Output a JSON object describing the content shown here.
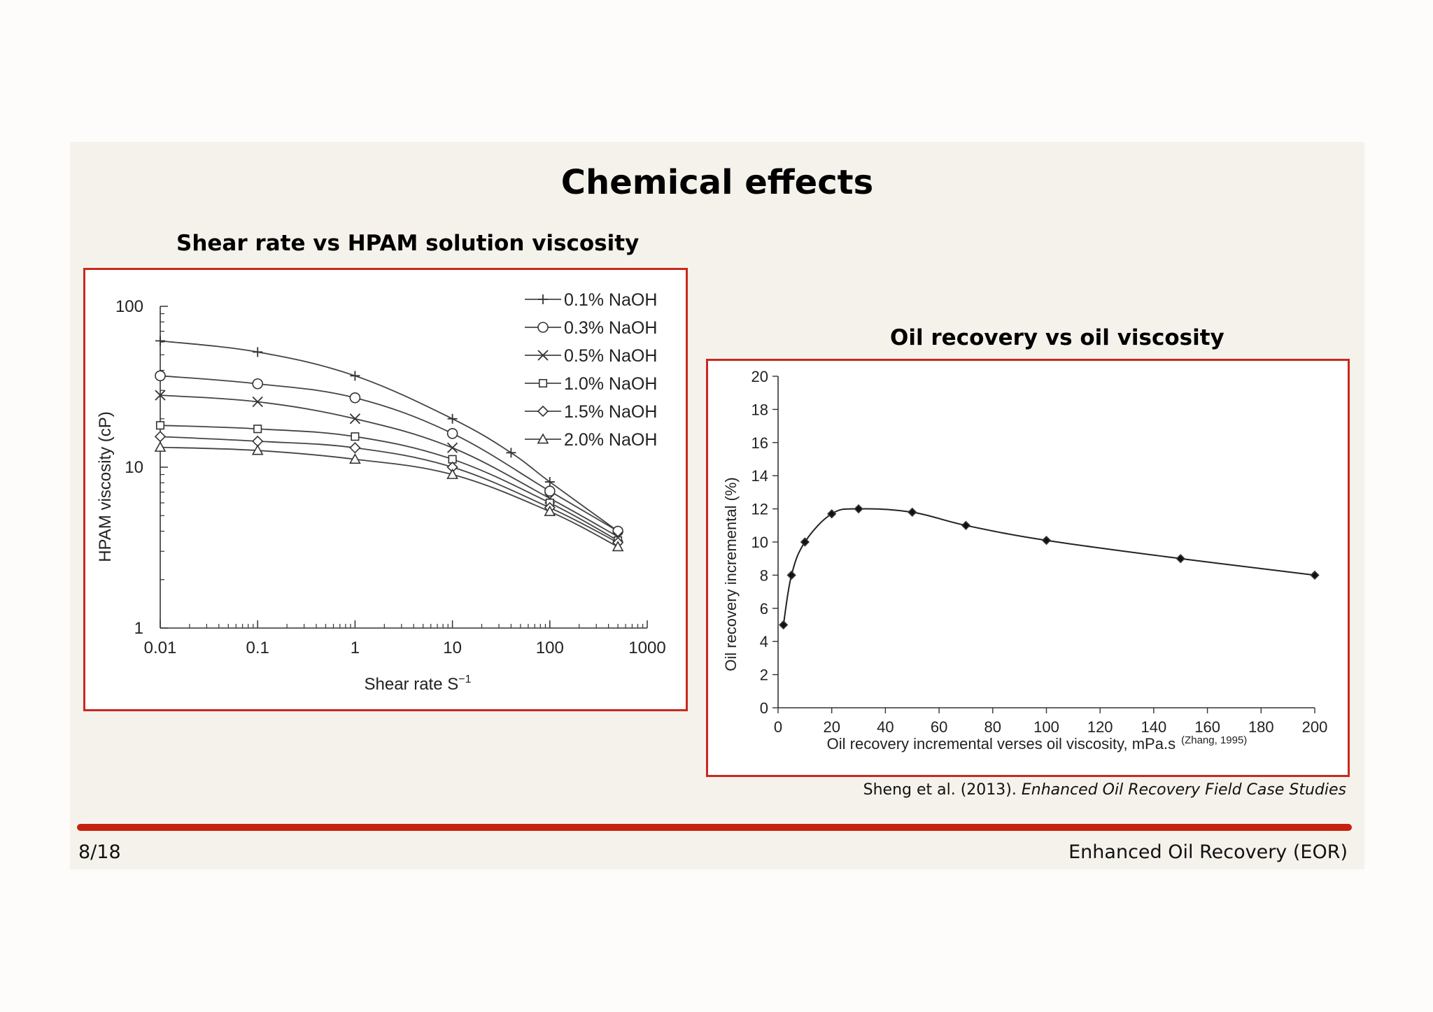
{
  "slide": {
    "title": "Chemical effects",
    "left_subtitle": "Shear rate vs HPAM solution viscosity",
    "right_subtitle": "Oil recovery vs oil viscosity",
    "reference_prefix": "Sheng et al. (2013). ",
    "reference_title": "Enhanced Oil Recovery Field Case Studies",
    "page_number": "8/18",
    "course_name": "Enhanced Oil Recovery (EOR)"
  },
  "chart_data": [
    {
      "type": "line",
      "xlabel": "Shear rate S",
      "xlabel_sup": "−1",
      "ylabel": "HPAM viscosity (cP)",
      "xscale": "log",
      "yscale": "log",
      "xlim": [
        0.01,
        1000
      ],
      "ylim": [
        1,
        100
      ],
      "x_ticks": [
        0.01,
        0.1,
        1,
        10,
        100,
        1000
      ],
      "x_tick_labels": [
        "0.01",
        "0.1",
        "1",
        "10",
        "100",
        "1000"
      ],
      "y_ticks": [
        1,
        10,
        100
      ],
      "y_tick_labels": [
        "1",
        "10",
        "100"
      ],
      "legend_position": "top-right",
      "series": [
        {
          "name": "0.1% NaOH",
          "marker": "plus",
          "x": [
            0.01,
            0.1,
            1,
            10,
            40,
            100,
            500
          ],
          "y": [
            61,
            52,
            37,
            20,
            12.3,
            8.1,
            4.0
          ]
        },
        {
          "name": "0.3% NaOH",
          "marker": "circle",
          "x": [
            0.01,
            0.1,
            1,
            10,
            100,
            500
          ],
          "y": [
            37,
            33,
            27,
            16.2,
            7.1,
            4.0
          ]
        },
        {
          "name": "0.5% NaOH",
          "marker": "x",
          "x": [
            0.01,
            0.1,
            1,
            10,
            100,
            500
          ],
          "y": [
            28,
            25.5,
            20,
            13.2,
            6.4,
            3.7
          ]
        },
        {
          "name": "1.0% NaOH",
          "marker": "square",
          "x": [
            0.01,
            0.1,
            1,
            10,
            100,
            500
          ],
          "y": [
            18.2,
            17.3,
            15.5,
            11.2,
            6.0,
            3.5
          ]
        },
        {
          "name": "1.5% NaOH",
          "marker": "diamond",
          "x": [
            0.01,
            0.1,
            1,
            10,
            100,
            500
          ],
          "y": [
            15.5,
            14.5,
            13.2,
            10.0,
            5.6,
            3.4
          ]
        },
        {
          "name": "2.0% NaOH",
          "marker": "triangle",
          "x": [
            0.01,
            0.1,
            1,
            10,
            100,
            500
          ],
          "y": [
            13.3,
            12.7,
            11.2,
            9.0,
            5.3,
            3.2
          ]
        }
      ]
    },
    {
      "type": "line",
      "xlabel": "Oil recovery incremental verses oil viscosity, mPa.s",
      "xlabel_note": "(Zhang, 1995)",
      "ylabel": "Oil recovery incremental (%)",
      "xlim": [
        0,
        200
      ],
      "ylim": [
        0,
        20
      ],
      "x_ticks": [
        0,
        20,
        40,
        60,
        80,
        100,
        120,
        140,
        160,
        180,
        200
      ],
      "y_ticks": [
        0,
        2,
        4,
        6,
        8,
        10,
        12,
        14,
        16,
        18,
        20
      ],
      "series": [
        {
          "marker": "diamond",
          "x": [
            2,
            5,
            10,
            20,
            30,
            50,
            70,
            100,
            150,
            200
          ],
          "y": [
            5.0,
            8.0,
            10.0,
            11.7,
            12.0,
            11.8,
            11.0,
            10.1,
            9.0,
            8.0
          ]
        }
      ]
    }
  ]
}
